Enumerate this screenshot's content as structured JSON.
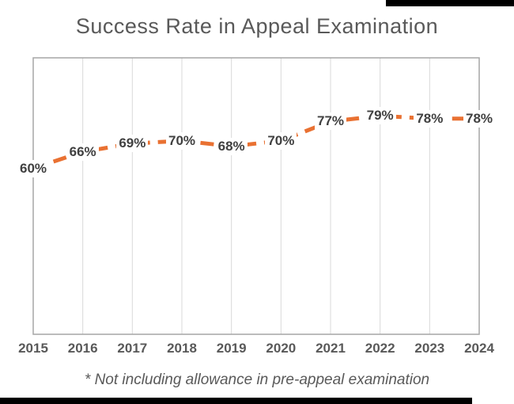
{
  "chart_data": {
    "type": "line",
    "title": "Success Rate in Appeal Examination",
    "footnote": "* Not including allowance in pre-appeal examination",
    "categories": [
      "2015",
      "2016",
      "2017",
      "2018",
      "2019",
      "2020",
      "2021",
      "2022",
      "2023",
      "2024"
    ],
    "series": [
      {
        "name": "Success Rate",
        "values": [
          60,
          66,
          69,
          70,
          68,
          70,
          77,
          79,
          78,
          78
        ]
      }
    ],
    "value_labels": [
      "60%",
      "66%",
      "69%",
      "70%",
      "68%",
      "70%",
      "77%",
      "79%",
      "78%",
      "78%"
    ],
    "ylim": [
      0,
      100
    ],
    "xlabel": "",
    "ylabel": "",
    "legend": "none",
    "grid": "vertical",
    "line_style": "dashed",
    "colors": {
      "line": "#E97132",
      "data_label": "#404040",
      "axis_label": "#595959",
      "title": "#595959",
      "gridline": "#D9D9D9",
      "plot_border": "#A6A6A6",
      "frame_bar": "#000000"
    }
  }
}
